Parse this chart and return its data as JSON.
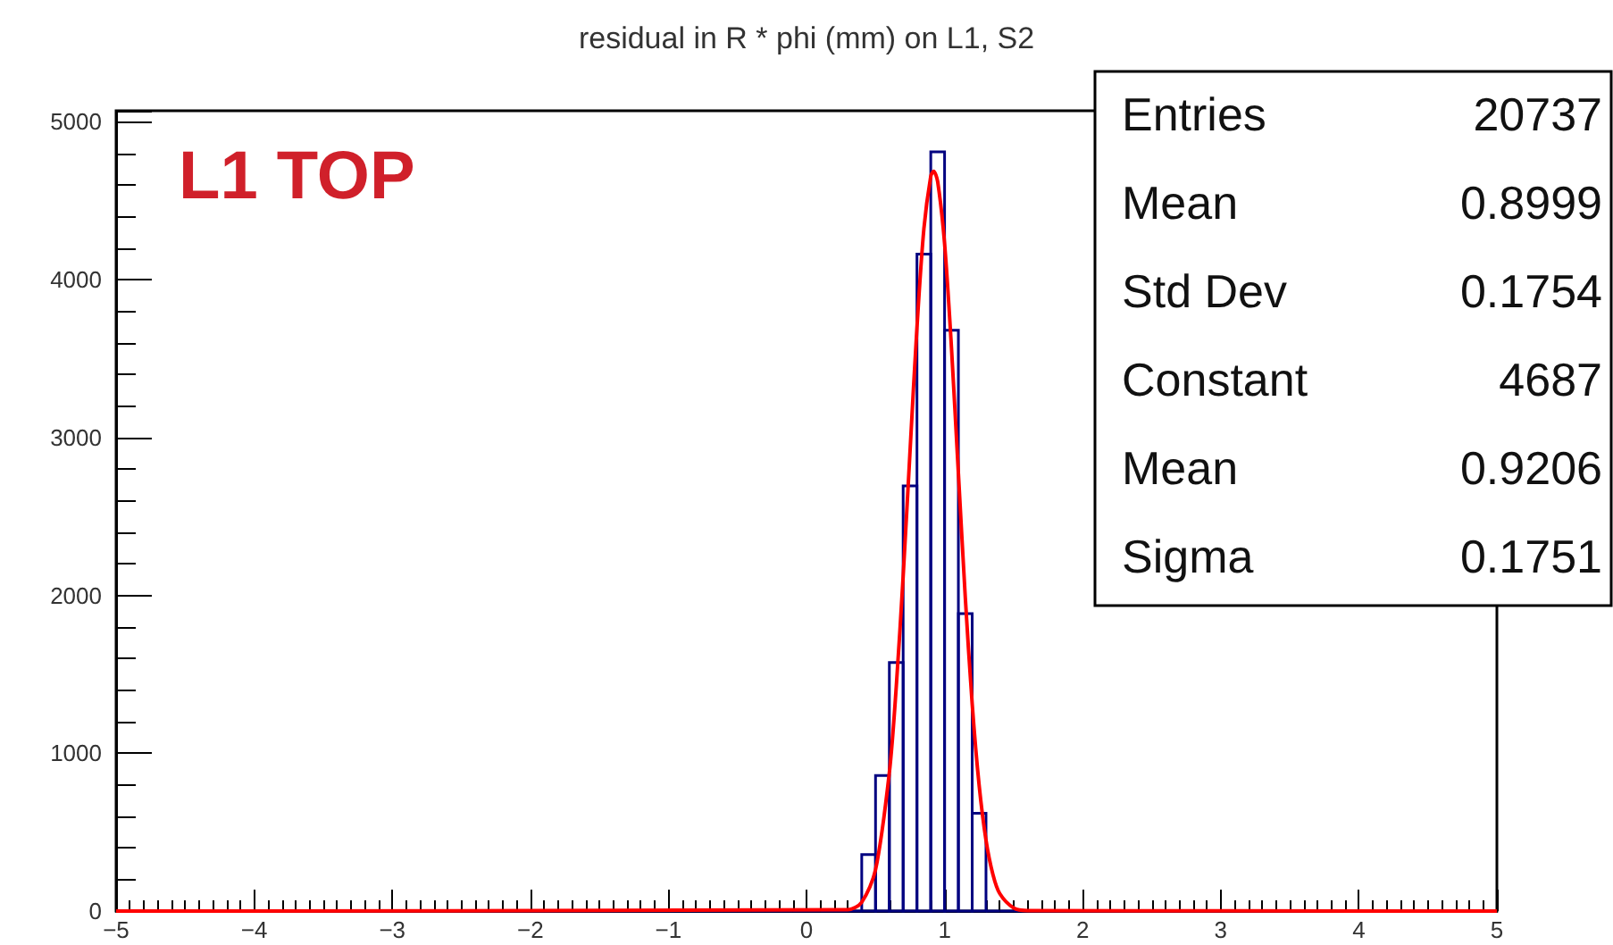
{
  "chart_data": {
    "type": "histogram",
    "title": "residual in R * phi (mm) on L1, S2",
    "annotations": [
      "L1 TOP",
      "Entries",
      "20737",
      "Mean",
      "0.8999",
      "Std Dev",
      "0.1754",
      "Constant",
      "4687",
      "Mean",
      "0.9206",
      "Sigma",
      "0.1751"
    ],
    "bins": [
      -5,
      -4.9,
      -4.8,
      -4.7,
      -4.6,
      -4.5,
      -4.4,
      -4.3,
      -4.2,
      -4.1,
      -4,
      -3.9,
      -3.8,
      -3.7,
      -3.6,
      -3.5,
      -3.4,
      -3.3,
      -3.2,
      -3.1,
      -3,
      -2.9,
      -2.8,
      -2.7,
      -2.6,
      -2.5,
      -2.4,
      -2.3,
      -2.2,
      -2.1,
      -2,
      -1.9,
      -1.8,
      -1.7,
      -1.6,
      -1.5,
      -1.4,
      -1.3,
      -1.2,
      -1.1,
      -1,
      -0.9,
      -0.8,
      -0.7,
      -0.6,
      -0.5,
      -0.4,
      -0.3,
      -0.2,
      -0.1,
      0,
      0.1,
      0.2,
      0.3,
      0.4,
      0.5,
      0.6,
      0.7,
      0.8,
      0.9,
      1,
      1.1,
      1.2,
      1.3,
      1.4,
      1.5,
      1.6,
      1.7,
      1.8,
      1.9,
      2,
      2.1,
      2.2,
      2.3,
      2.4,
      2.5,
      2.6,
      2.7,
      2.8,
      2.9,
      3,
      3.1,
      3.2,
      3.3,
      3.4,
      3.5,
      3.6,
      3.7,
      3.8,
      3.9,
      4,
      4.1,
      4.2,
      4.3,
      4.4,
      4.5,
      4.6,
      4.7,
      4.8,
      4.9,
      5
    ],
    "series": [
      {
        "color": "#000080",
        "values": [
          0,
          0,
          0,
          0,
          0,
          0,
          0,
          0,
          0,
          0,
          0,
          0,
          0,
          0,
          0,
          0,
          0,
          0,
          0,
          0,
          0,
          0,
          0,
          0,
          0,
          0,
          0,
          0,
          0,
          0,
          0,
          0,
          0,
          0,
          0,
          0,
          0,
          0,
          0,
          0,
          0,
          0,
          0,
          0,
          0,
          0,
          0,
          0,
          0,
          0,
          0,
          0,
          0,
          0,
          358,
          859,
          1574,
          2693,
          4162,
          4810,
          3679,
          1884,
          619,
          0,
          0,
          0,
          0,
          0,
          0,
          0,
          0,
          0,
          0,
          0,
          0,
          0,
          0,
          0,
          0,
          0,
          0,
          0,
          0,
          0,
          0,
          0,
          0,
          0,
          0,
          0,
          0,
          0,
          0,
          0,
          0,
          0,
          0,
          0,
          0,
          0
        ]
      },
      {
        "type": "line",
        "color": "#ff0000",
        "x": [
          -5,
          0.3,
          0.4,
          0.5,
          0.6,
          0.65,
          0.7,
          0.75,
          0.8,
          0.85,
          0.9,
          0.9206,
          0.95,
          1,
          1.05,
          1.1,
          1.15,
          1.2,
          1.25,
          1.3,
          1.35,
          1.4,
          1.5,
          1.6,
          5
        ],
        "values": [
          0,
          9,
          56,
          262,
          877,
          1420,
          2120,
          2916,
          3697,
          4321,
          4655,
          4687,
          4621,
          4229,
          3567,
          2773,
          1987,
          1312,
          799,
          449,
          232,
          110,
          20,
          3,
          0
        ]
      }
    ],
    "xlim": [
      -5,
      5
    ],
    "xticks": [
      -5,
      -4,
      -3,
      -2,
      -1,
      0,
      1,
      2,
      3,
      4,
      5
    ],
    "ylim": [
      0,
      5070
    ],
    "yticks": [
      0,
      1000,
      2000,
      3000,
      4000,
      5000
    ],
    "grid": false
  }
}
